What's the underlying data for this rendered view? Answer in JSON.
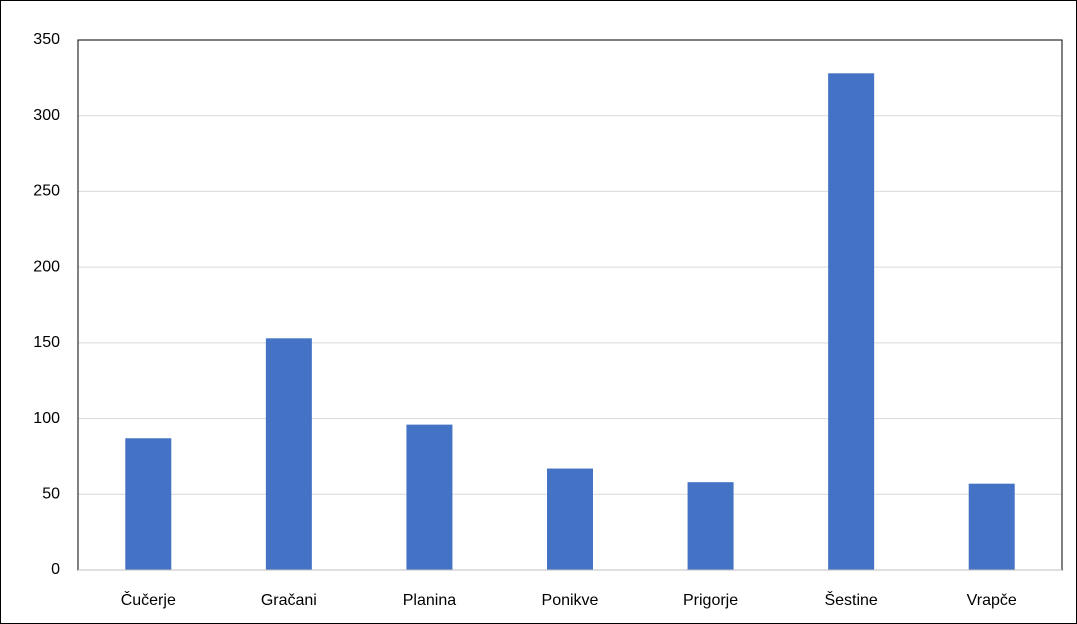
{
  "chart_data": {
    "type": "bar",
    "categories": [
      "Čučerje",
      "Gračani",
      "Planina",
      "Ponikve",
      "Prigorje",
      "Šestine",
      "Vrapče"
    ],
    "values": [
      87,
      153,
      96,
      67,
      58,
      328,
      57
    ],
    "color": "#4472c4",
    "ylim": [
      0,
      350
    ],
    "yticks": [
      0,
      50,
      100,
      150,
      200,
      250,
      300,
      350
    ],
    "grid": true
  }
}
